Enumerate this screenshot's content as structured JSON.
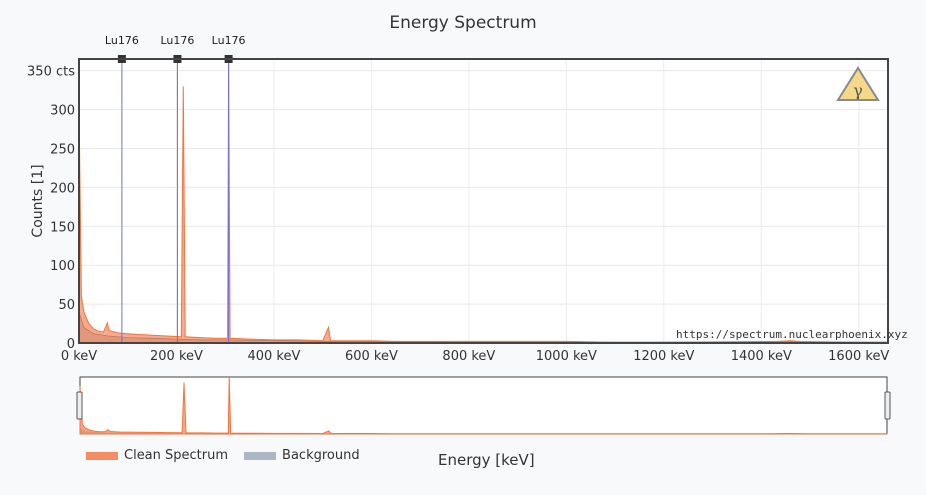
{
  "chart_data": {
    "type": "line",
    "title": "Energy Spectrum",
    "xlabel": "Energy [keV]",
    "ylabel": "Counts [1]",
    "xlim": [
      0,
      1660
    ],
    "ylim": [
      0,
      365
    ],
    "x_ticks": [
      0,
      200,
      400,
      600,
      800,
      1000,
      1200,
      1400,
      1600
    ],
    "x_tick_labels": [
      "0 keV",
      "200 keV",
      "400 keV",
      "600 keV",
      "800 keV",
      "1000 keV",
      "1200 keV",
      "1400 keV",
      "1600 keV"
    ],
    "y_ticks": [
      0,
      50,
      100,
      150,
      200,
      250,
      300,
      350
    ],
    "y_tick_labels": [
      "0",
      "50",
      "100",
      "150",
      "200",
      "250",
      "300",
      "350 cts"
    ],
    "grid": true,
    "legend_placement": "bottom-left",
    "series": [
      {
        "name": "Clean Spectrum",
        "color": "#f4733c",
        "points": [
          [
            0,
            305
          ],
          [
            5,
            60
          ],
          [
            10,
            40
          ],
          [
            20,
            25
          ],
          [
            30,
            18
          ],
          [
            40,
            15
          ],
          [
            50,
            14
          ],
          [
            58,
            26
          ],
          [
            62,
            16
          ],
          [
            80,
            13
          ],
          [
            100,
            12
          ],
          [
            120,
            11
          ],
          [
            150,
            10
          ],
          [
            180,
            9
          ],
          [
            210,
            8
          ],
          [
            214,
            330
          ],
          [
            218,
            8
          ],
          [
            250,
            7
          ],
          [
            280,
            6
          ],
          [
            305,
            6
          ],
          [
            307,
            365
          ],
          [
            310,
            6
          ],
          [
            350,
            5
          ],
          [
            400,
            4
          ],
          [
            450,
            4
          ],
          [
            500,
            3
          ],
          [
            512,
            20
          ],
          [
            516,
            3
          ],
          [
            550,
            3
          ],
          [
            600,
            3
          ],
          [
            650,
            2
          ],
          [
            700,
            2
          ],
          [
            800,
            2
          ],
          [
            900,
            2
          ],
          [
            1000,
            2
          ],
          [
            1100,
            1
          ],
          [
            1200,
            1
          ],
          [
            1300,
            1
          ],
          [
            1400,
            1
          ],
          [
            1460,
            3
          ],
          [
            1500,
            1
          ],
          [
            1600,
            1
          ],
          [
            1660,
            1
          ]
        ]
      },
      {
        "name": "Background",
        "color": "#9aa5b8",
        "points": [
          [
            0,
            40
          ],
          [
            10,
            20
          ],
          [
            30,
            12
          ],
          [
            60,
            9
          ],
          [
            100,
            7
          ],
          [
            150,
            6
          ],
          [
            200,
            5
          ],
          [
            250,
            4
          ],
          [
            300,
            4
          ],
          [
            400,
            3
          ],
          [
            500,
            2
          ],
          [
            600,
            2
          ],
          [
            800,
            1
          ],
          [
            1000,
            1
          ],
          [
            1200,
            1
          ],
          [
            1460,
            2
          ],
          [
            1600,
            1
          ],
          [
            1660,
            1
          ]
        ]
      }
    ],
    "markers": [
      {
        "label": "Lu176",
        "x": 88
      },
      {
        "label": "Lu176",
        "x": 202
      },
      {
        "label": "Lu176",
        "x": 307
      }
    ]
  },
  "watermark": "https://spectrum.nuclearphoenix.xyz",
  "logo_icon": "gamma-warning-icon"
}
